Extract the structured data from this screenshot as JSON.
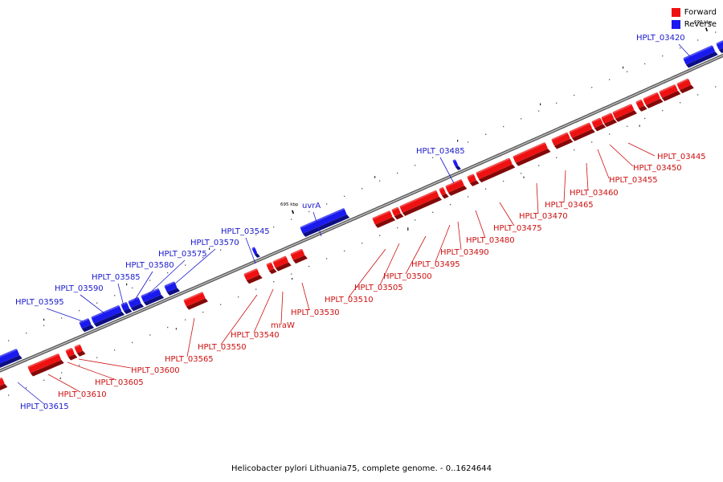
{
  "colors": {
    "forward": "#ee1111",
    "reverse": "#1a1aee",
    "backbone": "#888888"
  },
  "legend": [
    {
      "label": "Forward",
      "color": "#ee1111"
    },
    {
      "label": "Reverse",
      "color": "#1a1aee"
    }
  ],
  "caption": "Helicobacter pylori Lithuania75, complete genome. - 0..1624644",
  "scale": {
    "ticks": [
      {
        "label": "690 kbp",
        "pos_kbp": 690
      },
      {
        "label": "695 kbp",
        "pos_kbp": 695
      },
      {
        "label": "700 kbp",
        "pos_kbp": 700
      },
      {
        "label": "705 kbp",
        "pos_kbp": 705
      },
      {
        "label": "710 kbp",
        "pos_kbp": 710
      },
      {
        "label": "715 kbp",
        "pos_kbp": 715
      },
      {
        "label": "720 kbp",
        "pos_kbp": 720
      },
      {
        "label": "725 kbp",
        "pos_kbp": 725
      },
      {
        "label": "730 kbp",
        "pos_kbp": 730
      }
    ]
  },
  "gene_labels": [
    {
      "text": "HPLT_03420",
      "strand": "reverse"
    },
    {
      "text": "HPLT_03445",
      "strand": "forward"
    },
    {
      "text": "HPLT_03450",
      "strand": "forward"
    },
    {
      "text": "HPLT_03455",
      "strand": "forward"
    },
    {
      "text": "HPLT_03460",
      "strand": "forward"
    },
    {
      "text": "HPLT_03465",
      "strand": "forward"
    },
    {
      "text": "HPLT_03470",
      "strand": "forward"
    },
    {
      "text": "HPLT_03475",
      "strand": "forward"
    },
    {
      "text": "HPLT_03480",
      "strand": "forward"
    },
    {
      "text": "HPLT_03485",
      "strand": "reverse"
    },
    {
      "text": "HPLT_03490",
      "strand": "forward"
    },
    {
      "text": "HPLT_03495",
      "strand": "forward"
    },
    {
      "text": "HPLT_03500",
      "strand": "forward"
    },
    {
      "text": "HPLT_03505",
      "strand": "forward"
    },
    {
      "text": "HPLT_03510",
      "strand": "forward"
    },
    {
      "text": "uvrA",
      "strand": "reverse"
    },
    {
      "text": "HPLT_03530",
      "strand": "forward"
    },
    {
      "text": "mraW",
      "strand": "forward"
    },
    {
      "text": "HPLT_03540",
      "strand": "forward"
    },
    {
      "text": "HPLT_03545",
      "strand": "reverse"
    },
    {
      "text": "HPLT_03550",
      "strand": "forward"
    },
    {
      "text": "HPLT_03565",
      "strand": "forward"
    },
    {
      "text": "HPLT_03570",
      "strand": "reverse"
    },
    {
      "text": "HPLT_03575",
      "strand": "reverse"
    },
    {
      "text": "HPLT_03580",
      "strand": "reverse"
    },
    {
      "text": "HPLT_03585",
      "strand": "reverse"
    },
    {
      "text": "HPLT_03590",
      "strand": "reverse"
    },
    {
      "text": "HPLT_03595",
      "strand": "reverse"
    },
    {
      "text": "HPLT_03600",
      "strand": "forward"
    },
    {
      "text": "HPLT_03605",
      "strand": "forward"
    },
    {
      "text": "HPLT_03610",
      "strand": "forward"
    },
    {
      "text": "HPLT_03615",
      "strand": "reverse"
    }
  ]
}
